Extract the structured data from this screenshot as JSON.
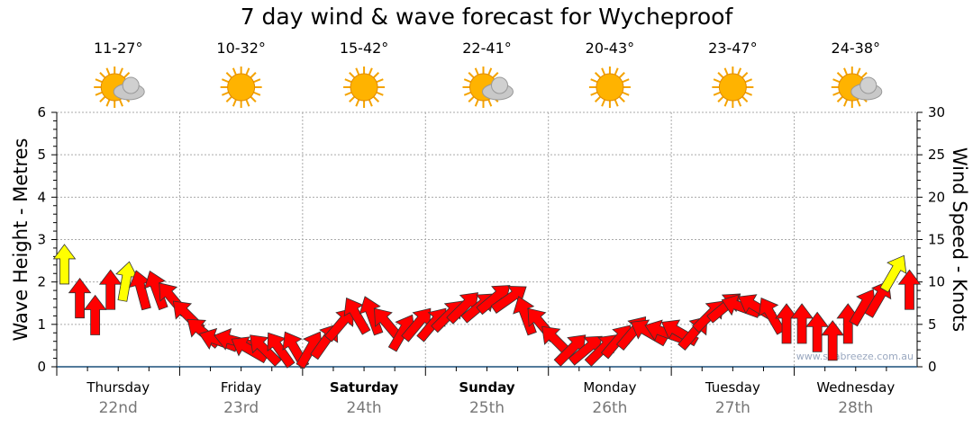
{
  "chart_data": {
    "type": "scatter",
    "title": "7 day wind & wave forecast for Wycheproof",
    "ylabel": "Wave Height - Metres",
    "y2label": "Wind Speed - Knots",
    "ylim": [
      0,
      6
    ],
    "y2lim": [
      0,
      30
    ],
    "yticks": [
      "0",
      "1",
      "2",
      "3",
      "4",
      "5",
      "6"
    ],
    "y2ticks": [
      "0",
      "5",
      "10",
      "15",
      "20",
      "25",
      "30"
    ],
    "grid": true,
    "watermark": "www.seabreeze.com.au",
    "days": [
      {
        "name": "Thursday",
        "date": "22nd",
        "bold": false,
        "temp": "11-27°",
        "icon": "partly-cloudy"
      },
      {
        "name": "Friday",
        "date": "23rd",
        "bold": false,
        "temp": "10-32°",
        "icon": "sunny"
      },
      {
        "name": "Saturday",
        "date": "24th",
        "bold": true,
        "temp": "15-42°",
        "icon": "sunny"
      },
      {
        "name": "Sunday",
        "date": "25th",
        "bold": true,
        "temp": "22-41°",
        "icon": "partly-cloudy"
      },
      {
        "name": "Monday",
        "date": "26th",
        "bold": false,
        "temp": "20-43°",
        "icon": "sunny"
      },
      {
        "name": "Tuesday",
        "date": "27th",
        "bold": false,
        "temp": "23-47°",
        "icon": "sunny"
      },
      {
        "name": "Wednesday",
        "date": "28th",
        "bold": false,
        "temp": "24-38°",
        "icon": "partly-cloudy"
      }
    ],
    "wind_speed_knots": [
      14,
      10,
      8,
      11,
      12,
      11,
      11,
      10,
      8,
      6,
      5,
      5,
      4,
      4,
      4,
      4,
      4,
      5,
      7,
      8,
      8,
      7,
      6,
      7,
      7,
      8,
      9,
      9,
      10,
      10,
      8,
      7,
      5,
      4,
      4,
      4,
      5,
      6,
      6,
      6,
      6,
      6,
      8,
      9,
      9,
      9,
      8,
      7,
      7,
      6,
      5,
      7,
      9,
      10,
      13,
      11
    ],
    "wind_arrow_deg": [
      0,
      0,
      0,
      0,
      10,
      -15,
      -20,
      -40,
      -45,
      -50,
      -70,
      -75,
      -60,
      -45,
      -35,
      -30,
      30,
      35,
      40,
      -30,
      -20,
      -40,
      30,
      40,
      40,
      45,
      45,
      50,
      50,
      55,
      -20,
      -40,
      -45,
      45,
      50,
      45,
      40,
      40,
      -60,
      -70,
      -60,
      40,
      45,
      50,
      -70,
      -60,
      -30,
      0,
      0,
      0,
      0,
      0,
      30,
      30,
      30,
      0
    ],
    "yellow_threshold_knots": 12,
    "colors": {
      "strong": "#ffff00",
      "normal": "#ff0000",
      "axis": "#1a4f7a"
    }
  }
}
